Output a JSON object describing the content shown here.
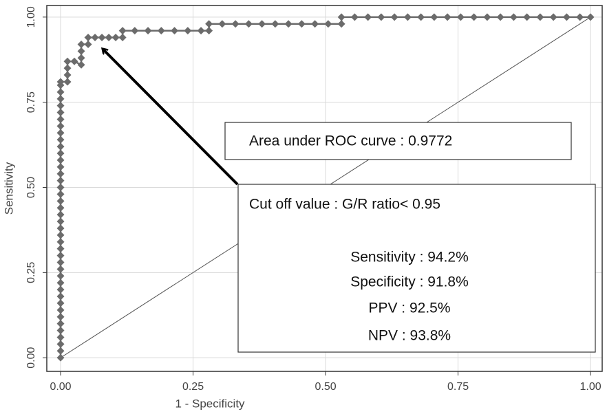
{
  "chart_data": {
    "type": "line",
    "xlabel": "1 - Specificity",
    "ylabel": "Sensitivity",
    "xlim": [
      -0.026,
      1.022
    ],
    "ylim": [
      -0.04,
      1.034
    ],
    "xticks": [
      {
        "value": 0,
        "label": "0.00"
      },
      {
        "value": 0.25,
        "label": "0.25"
      },
      {
        "value": 0.5,
        "label": "0.50"
      },
      {
        "value": 0.75,
        "label": "0.75"
      },
      {
        "value": 1,
        "label": "1.00"
      }
    ],
    "yticks": [
      {
        "value": 0,
        "label": "0.00"
      },
      {
        "value": 0.25,
        "label": "0.25"
      },
      {
        "value": 0.5,
        "label": "0.50"
      },
      {
        "value": 0.75,
        "label": "0.75"
      },
      {
        "value": 1,
        "label": "1.00"
      }
    ],
    "grid": true,
    "color": "#6b6b6b",
    "x": [
      0,
      0,
      0,
      0,
      0,
      0,
      0,
      0,
      0,
      0,
      0,
      0,
      0,
      0,
      0,
      0,
      0,
      0,
      0,
      0,
      0,
      0,
      0,
      0,
      0,
      0,
      0,
      0,
      0,
      0,
      0,
      0,
      0,
      0,
      0,
      0,
      0,
      0,
      0,
      0,
      0,
      0,
      0.013,
      0.013,
      0.013,
      0.013,
      0.026,
      0.039,
      0.039,
      0.039,
      0.039,
      0.052,
      0.052,
      0.065,
      0.078,
      0.091,
      0.104,
      0.117,
      0.117,
      0.14,
      0.165,
      0.19,
      0.215,
      0.24,
      0.265,
      0.28,
      0.28,
      0.305,
      0.33,
      0.355,
      0.38,
      0.405,
      0.43,
      0.455,
      0.48,
      0.505,
      0.53,
      0.53,
      0.555,
      0.58,
      0.605,
      0.63,
      0.655,
      0.68,
      0.705,
      0.73,
      0.755,
      0.78,
      0.805,
      0.83,
      0.855,
      0.88,
      0.905,
      0.93,
      0.955,
      0.98,
      1.0
    ],
    "values": [
      0,
      0.02,
      0.04,
      0.06,
      0.08,
      0.1,
      0.12,
      0.14,
      0.16,
      0.18,
      0.2,
      0.22,
      0.24,
      0.26,
      0.28,
      0.3,
      0.32,
      0.34,
      0.36,
      0.38,
      0.4,
      0.42,
      0.44,
      0.46,
      0.48,
      0.5,
      0.52,
      0.54,
      0.56,
      0.58,
      0.6,
      0.62,
      0.64,
      0.66,
      0.68,
      0.7,
      0.72,
      0.74,
      0.76,
      0.78,
      0.8,
      0.81,
      0.81,
      0.83,
      0.85,
      0.87,
      0.87,
      0.86,
      0.88,
      0.9,
      0.92,
      0.92,
      0.94,
      0.94,
      0.94,
      0.94,
      0.94,
      0.94,
      0.96,
      0.96,
      0.96,
      0.96,
      0.96,
      0.96,
      0.96,
      0.96,
      0.98,
      0.98,
      0.98,
      0.98,
      0.98,
      0.98,
      0.98,
      0.98,
      0.98,
      0.98,
      0.98,
      1.0,
      1.0,
      1.0,
      1.0,
      1.0,
      1.0,
      1.0,
      1.0,
      1.0,
      1.0,
      1.0,
      1.0,
      1.0,
      1.0,
      1.0,
      1.0,
      1.0,
      1.0,
      1.0,
      1.0
    ],
    "reference_line": {
      "x": [
        0,
        1
      ],
      "values": [
        0,
        1
      ],
      "color": "#555"
    },
    "auc_box": "Area under ROC curve : 0.9772",
    "cutoff_box": [
      "Cut off value : G/R ratio< 0.95",
      "Sensitivity : 94.2%",
      "Specificity : 91.8%",
      "PPV :  92.5%",
      "NPV : 93.8%"
    ]
  }
}
